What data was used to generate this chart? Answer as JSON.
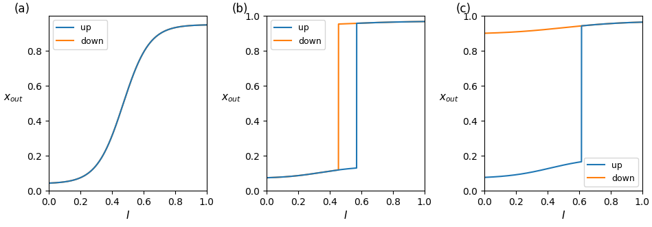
{
  "color_up": "#1f77b4",
  "color_down": "#ff7f0e",
  "xlabel": "I",
  "panel_labels": [
    "(a)",
    "(b)",
    "(c)"
  ],
  "figsize": [
    9.49,
    3.31
  ],
  "dpi": 100,
  "a_ylim": [
    0.0,
    1.0
  ],
  "a_yticks": [
    0.0,
    0.2,
    0.4,
    0.6,
    0.8
  ],
  "b_ylim": [
    0.0,
    1.0
  ],
  "b_yticks": [
    0.0,
    0.2,
    0.4,
    0.6,
    0.8,
    1.0
  ],
  "b_jump_up": 0.57,
  "b_jump_down": 0.455,
  "c_ylim": [
    0.0,
    1.0
  ],
  "c_yticks": [
    0.0,
    0.2,
    0.4,
    0.6,
    0.8,
    1.0
  ],
  "c_jump_up": 0.615
}
